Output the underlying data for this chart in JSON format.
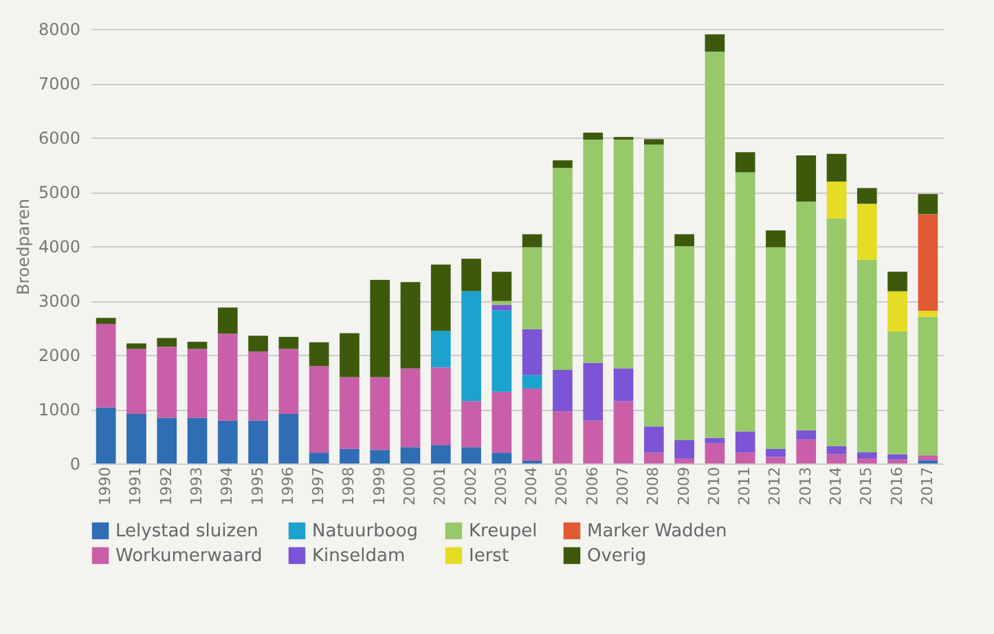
{
  "chart_data": {
    "type": "bar",
    "stacked": true,
    "ylabel": "Broedparen",
    "categories": [
      "1990",
      "1991",
      "1992",
      "1993",
      "1994",
      "1995",
      "1996",
      "1997",
      "1998",
      "1999",
      "2000",
      "2001",
      "2002",
      "2003",
      "2004",
      "2005",
      "2006",
      "2007",
      "2008",
      "2009",
      "2010",
      "2011",
      "2012",
      "2013",
      "2014",
      "2015",
      "2016",
      "2017"
    ],
    "series": [
      {
        "name": "Lelystad sluizen",
        "color": "#2f6db5",
        "values": [
          1030,
          910,
          840,
          840,
          790,
          790,
          910,
          200,
          270,
          250,
          300,
          340,
          300,
          200,
          50,
          null,
          null,
          null,
          null,
          null,
          null,
          null,
          null,
          null,
          null,
          null,
          null,
          60
        ]
      },
      {
        "name": "Workumerwaard",
        "color": "#c95fa8",
        "values": [
          1540,
          1200,
          1310,
          1270,
          1600,
          1270,
          1200,
          1590,
          1320,
          1340,
          1450,
          1430,
          850,
          1120,
          1330,
          960,
          790,
          1150,
          200,
          90,
          370,
          200,
          120,
          440,
          170,
          90,
          70,
          90
        ]
      },
      {
        "name": "Natuurboog",
        "color": "#1ba2cf",
        "values": [
          null,
          null,
          null,
          null,
          null,
          null,
          null,
          null,
          null,
          null,
          null,
          670,
          2020,
          1500,
          250,
          null,
          null,
          null,
          null,
          null,
          null,
          null,
          null,
          null,
          null,
          null,
          null,
          null
        ]
      },
      {
        "name": "Kinseldam",
        "color": "#7b55d6",
        "values": [
          null,
          null,
          null,
          null,
          null,
          null,
          null,
          null,
          null,
          null,
          null,
          null,
          null,
          100,
          840,
          760,
          1060,
          600,
          480,
          340,
          100,
          390,
          150,
          170,
          150,
          120,
          100,
          null
        ]
      },
      {
        "name": "Kreupel",
        "color": "#97c86a",
        "values": [
          null,
          null,
          null,
          null,
          null,
          null,
          null,
          null,
          null,
          null,
          null,
          null,
          null,
          70,
          1510,
          3720,
          4110,
          4210,
          5190,
          3570,
          7110,
          4770,
          3710,
          4210,
          4190,
          3540,
          2260,
          2550
        ]
      },
      {
        "name": "Ierst",
        "color": "#e5dc24",
        "values": [
          null,
          null,
          null,
          null,
          null,
          null,
          null,
          null,
          null,
          null,
          null,
          null,
          null,
          null,
          null,
          null,
          null,
          null,
          null,
          null,
          null,
          null,
          null,
          null,
          680,
          1030,
          740,
          110
        ]
      },
      {
        "name": "Marker Wadden",
        "color": "#e05a34",
        "values": [
          null,
          null,
          null,
          null,
          null,
          null,
          null,
          null,
          null,
          null,
          null,
          null,
          null,
          null,
          null,
          null,
          null,
          null,
          null,
          null,
          null,
          null,
          null,
          null,
          null,
          null,
          null,
          1780
        ]
      },
      {
        "name": "Overig",
        "color": "#3d5a0c",
        "values": [
          110,
          100,
          160,
          130,
          480,
          290,
          220,
          440,
          810,
          1790,
          1590,
          1220,
          600,
          540,
          240,
          140,
          130,
          50,
          100,
          220,
          320,
          370,
          310,
          850,
          510,
          290,
          360,
          370
        ]
      }
    ],
    "ylim": [
      0,
      8000
    ],
    "yticks": [
      0,
      1000,
      2000,
      3000,
      4000,
      5000,
      6000,
      7000,
      8000
    ],
    "grid": "y",
    "legend": "bottom"
  }
}
